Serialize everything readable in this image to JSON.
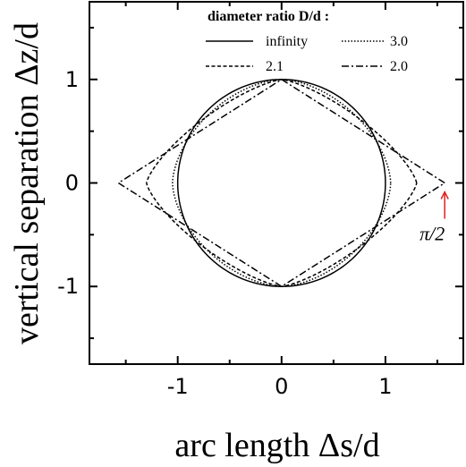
{
  "chart_data": {
    "type": "line",
    "xlabel": "arc length Δs/d",
    "ylabel": "vertical separation Δz/d",
    "xlim": [
      -1.85,
      1.75
    ],
    "ylim": [
      -1.75,
      1.75
    ],
    "x_ticks": [
      {
        "value": -1,
        "label": "-1"
      },
      {
        "value": 0,
        "label": "0"
      },
      {
        "value": 1,
        "label": "1"
      }
    ],
    "y_ticks": [
      {
        "value": 1,
        "label": "1"
      },
      {
        "value": 0,
        "label": "0"
      },
      {
        "value": -1,
        "label": "-1"
      }
    ],
    "x_minor_ticks": [
      -1.5,
      -0.5,
      0.5,
      1.5
    ],
    "y_minor_ticks": [
      1.5,
      0.5,
      -0.5,
      -1.5
    ],
    "grid": false,
    "legend": {
      "title": "diameter ratio D/d :",
      "placement": "top-right",
      "entries": [
        "infinity",
        "3.0",
        "2.1",
        "2.0"
      ]
    },
    "series": [
      {
        "name": "infinity",
        "dash": "solid",
        "max_x": 1.0,
        "shape_exponent": 2.0
      },
      {
        "name": "3.0",
        "dash": "dotted",
        "max_x": 1.05,
        "shape_exponent": 1.7
      },
      {
        "name": "2.1",
        "dash": "dashed",
        "max_x": 1.3,
        "shape_exponent": 1.35
      },
      {
        "name": "2.0",
        "dash": "dashdot",
        "max_x": 1.5708,
        "shape_exponent": 1.0
      }
    ],
    "annotations": [
      {
        "text": "π/2",
        "x": 1.5708,
        "y": 0,
        "color": "#e02020"
      }
    ]
  }
}
